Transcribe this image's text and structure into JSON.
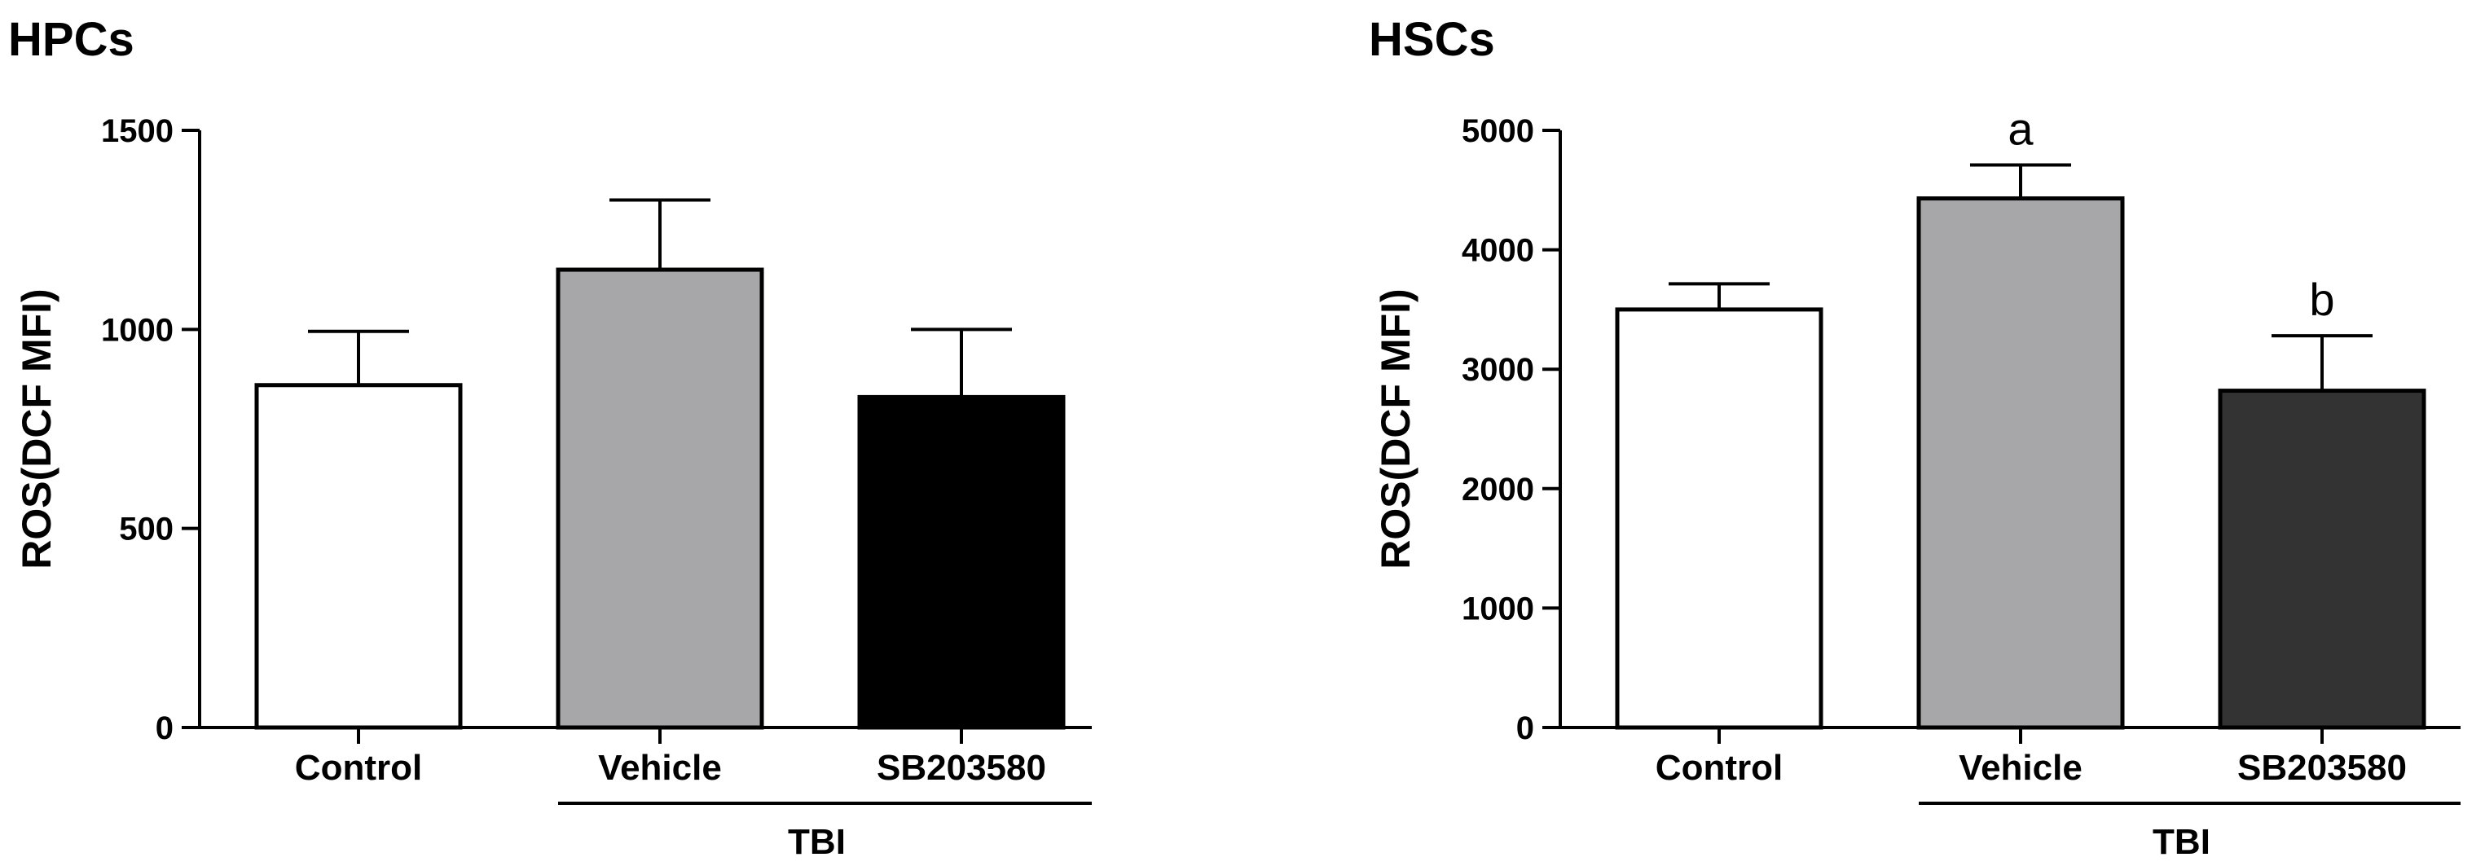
{
  "chart_data": [
    {
      "type": "bar",
      "title": "HPCs",
      "ylabel": "ROS(DCF MFI)",
      "ylim": [
        0,
        1500
      ],
      "yticks": [
        0,
        500,
        1000,
        1500
      ],
      "categories": [
        "Control",
        "Vehicle",
        "SB203580"
      ],
      "values": [
        860,
        1150,
        830
      ],
      "errors": [
        135,
        175,
        170
      ],
      "colors": [
        "#ffffff",
        "#a7a7aa",
        "#000000"
      ],
      "annotations": [
        "",
        "",
        ""
      ],
      "group": {
        "label": "TBI",
        "categories": [
          "Vehicle",
          "SB203580"
        ]
      }
    },
    {
      "type": "bar",
      "title": "HSCs",
      "ylabel": "ROS(DCF MFI)",
      "ylim": [
        0,
        5000
      ],
      "yticks": [
        0,
        1000,
        2000,
        3000,
        4000,
        5000
      ],
      "categories": [
        "Control",
        "Vehicle",
        "SB203580"
      ],
      "values": [
        3500,
        4430,
        2820
      ],
      "errors": [
        215,
        280,
        460
      ],
      "colors": [
        "#ffffff",
        "#a7a7aa",
        "#333333"
      ],
      "annotations": [
        "",
        "a",
        "b"
      ],
      "group": {
        "label": "TBI",
        "categories": [
          "Vehicle",
          "SB203580"
        ]
      }
    }
  ]
}
